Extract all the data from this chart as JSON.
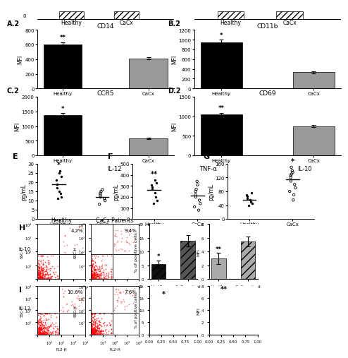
{
  "A2": {
    "title": "CD14",
    "label": "A.2",
    "categories": [
      "Healthy",
      "CaCx"
    ],
    "values": [
      600,
      410
    ],
    "errors": [
      30,
      15
    ],
    "colors": [
      "#000000",
      "#999999"
    ],
    "ylabel": "MFI",
    "ylim": [
      0,
      800
    ],
    "yticks": [
      0,
      200,
      400,
      600,
      800
    ],
    "sig": [
      "**",
      ""
    ]
  },
  "B2": {
    "title": "CD11b",
    "label": "B.2",
    "categories": [
      "Healthy",
      "CaCx"
    ],
    "values": [
      950,
      330
    ],
    "errors": [
      50,
      20
    ],
    "colors": [
      "#000000",
      "#999999"
    ],
    "ylabel": "MFI",
    "ylim": [
      0,
      1200
    ],
    "yticks": [
      0,
      200,
      400,
      600,
      800,
      1000,
      1200
    ],
    "sig": [
      "*",
      ""
    ]
  },
  "C2": {
    "title": "CCR5",
    "label": "C.2",
    "categories": [
      "Healthy",
      "CaCx"
    ],
    "values": [
      1380,
      580
    ],
    "errors": [
      60,
      30
    ],
    "colors": [
      "#000000",
      "#999999"
    ],
    "ylabel": "MFI",
    "ylim": [
      0,
      2000
    ],
    "yticks": [
      0,
      500,
      1000,
      1500,
      2000
    ],
    "sig": [
      "*",
      ""
    ]
  },
  "D2": {
    "title": "CD69",
    "label": "D.2",
    "categories": [
      "Healthy",
      "CaCx"
    ],
    "values": [
      1050,
      750
    ],
    "errors": [
      40,
      25
    ],
    "colors": [
      "#000000",
      "#999999"
    ],
    "ylabel": "MFI",
    "ylim": [
      0,
      1500
    ],
    "yticks": [
      0,
      500,
      1000,
      1500
    ],
    "sig": [
      "**",
      ""
    ]
  },
  "E": {
    "title": "IL-12",
    "ylabel": "pg/mL",
    "ylim": [
      0,
      30
    ],
    "yticks": [
      0,
      5,
      10,
      15,
      20,
      25,
      30
    ],
    "healthy_dots": [
      11,
      12,
      14,
      15,
      17,
      19,
      21,
      23,
      25,
      26
    ],
    "cacx_dots": [
      8,
      10,
      11,
      12,
      13,
      14,
      15,
      16
    ],
    "healthy_mean": 19,
    "cacx_mean": 12,
    "sig_healthy": "*"
  },
  "F": {
    "title": "TNF-α",
    "ylabel": "pg/mL",
    "ylim": [
      0,
      500
    ],
    "yticks": [
      0,
      100,
      200,
      300,
      400,
      500
    ],
    "healthy_dots": [
      140,
      170,
      200,
      240,
      270,
      290,
      310,
      330,
      350
    ],
    "cacx_dots": [
      80,
      110,
      140,
      170,
      200,
      220,
      250,
      270,
      310,
      340
    ],
    "healthy_mean": 260,
    "cacx_mean": 210,
    "sig_healthy": "**"
  },
  "G": {
    "title": "IL-10",
    "ylabel": "pg/mL",
    "ylim": [
      0,
      160
    ],
    "yticks": [
      0,
      40,
      80,
      120,
      160
    ],
    "healthy_dots": [
      40,
      45,
      50,
      55,
      60,
      65,
      70,
      75
    ],
    "cacx_dots": [
      55,
      70,
      80,
      90,
      100,
      110,
      120,
      125,
      130,
      135,
      140,
      150
    ],
    "healthy_mean": 55,
    "cacx_mean": 115,
    "sig_cacx": "*"
  },
  "H_pct": {
    "ylabel": "% of positive cells",
    "categories": [
      "Healthy",
      "CaCx patient"
    ],
    "values": [
      5.5,
      14.0
    ],
    "errors": [
      1.2,
      2.0
    ],
    "colors": [
      "#111111",
      "#555555"
    ],
    "hatch": [
      "///",
      "///"
    ],
    "sig": [
      "*",
      ""
    ]
  },
  "H_mfi": {
    "ylabel": "MFI",
    "categories": [
      "Healthy",
      "CaCx patient"
    ],
    "values": [
      3.0,
      5.5
    ],
    "errors": [
      0.8,
      0.7
    ],
    "colors": [
      "#aaaaaa",
      "#aaaaaa"
    ],
    "hatch": [
      "",
      "///"
    ],
    "sig": [
      "**",
      ""
    ]
  },
  "H_flow_healthy_pct": "4.2%",
  "H_flow_cacx_pct": "9.4%",
  "I_flow_healthy_pct": "10.6%",
  "I_flow_cacx_pct": "7.6%",
  "top_bar_healthy_label": "Healthy",
  "top_bar_cacx_label": "CaCx",
  "background": "#ffffff"
}
